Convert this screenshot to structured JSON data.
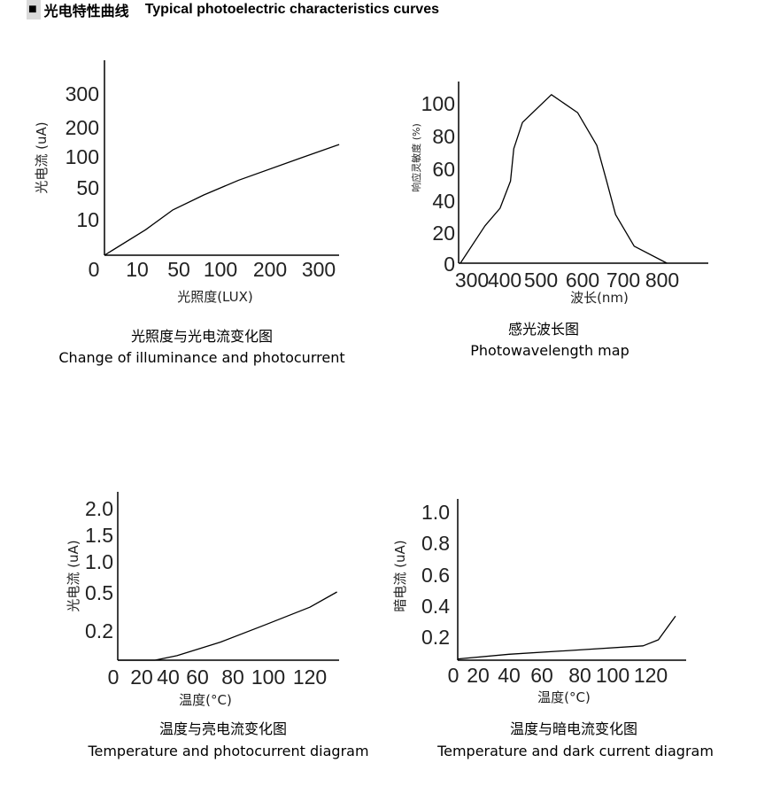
{
  "header": {
    "marker": "■",
    "title_cn": "光电特性曲线",
    "title_en": "Typical photoelectric characteristics curves"
  },
  "chart_data": [
    {
      "type": "line",
      "caption_cn": "光照度与光电流变化图",
      "caption_en": "Change of illuminance and photocurrent",
      "xlabel": "光照度(LUX)",
      "ylabel": "光电流 (uA)",
      "xticks": [
        "0",
        "10",
        "50",
        "100",
        "200",
        "300"
      ],
      "yticks": [
        "0",
        "10",
        "50",
        "100",
        "200",
        "300"
      ],
      "x": [
        0,
        18,
        44,
        80,
        137,
        264,
        342
      ],
      "y": [
        0,
        7,
        21,
        40,
        61,
        97,
        139
      ],
      "grid": false,
      "color": "#000000"
    },
    {
      "type": "line",
      "caption_cn": "感光波长图",
      "caption_en": "Photowavelength map",
      "xlabel": "波长(nm)",
      "ylabel": "响应灵敏度 (%)",
      "xticks": [
        "300",
        "400",
        "500",
        "600",
        "700",
        "800"
      ],
      "yticks": [
        "0",
        "20",
        "40",
        "60",
        "80",
        "100"
      ],
      "x": [
        265,
        340,
        386,
        416,
        425,
        449,
        525,
        588,
        635,
        658,
        681,
        728,
        812
      ],
      "y": [
        0,
        24,
        35,
        52,
        72,
        88,
        105,
        94,
        74,
        53,
        31,
        11,
        0
      ],
      "grid": false,
      "color": "#000000"
    },
    {
      "type": "line",
      "caption_cn": "温度与亮电流变化图",
      "caption_en": "Temperature and photocurrent diagram",
      "xlabel": "温度(°C)",
      "ylabel": "光电流 (uA)",
      "xticks": [
        "0",
        "20",
        "40",
        "60",
        "80",
        "100",
        "120"
      ],
      "yticks": [
        "0",
        "0.2",
        "0.5",
        "1.0",
        "1.5",
        "2.0"
      ],
      "x": [
        0,
        30,
        46,
        73,
        98,
        120,
        133
      ],
      "y": [
        0,
        0,
        0.03,
        0.12,
        0.24,
        0.38,
        0.5
      ],
      "grid": false,
      "color": "#000000"
    },
    {
      "type": "line",
      "caption_cn": "温度与暗电流变化图",
      "caption_en": "Temperature and dark current diagram",
      "xlabel": "温度(°C)",
      "ylabel": "暗电流 (uA)",
      "xticks": [
        "0",
        "20",
        "40",
        "60",
        "80",
        "100",
        "120"
      ],
      "yticks": [
        "0.2",
        "0.4",
        "0.6",
        "0.8",
        "1.0"
      ],
      "x": [
        0,
        40,
        84,
        116,
        124,
        133
      ],
      "y": [
        0.01,
        0.05,
        0.09,
        0.12,
        0.17,
        0.33
      ],
      "grid": false,
      "color": "#000000"
    }
  ]
}
